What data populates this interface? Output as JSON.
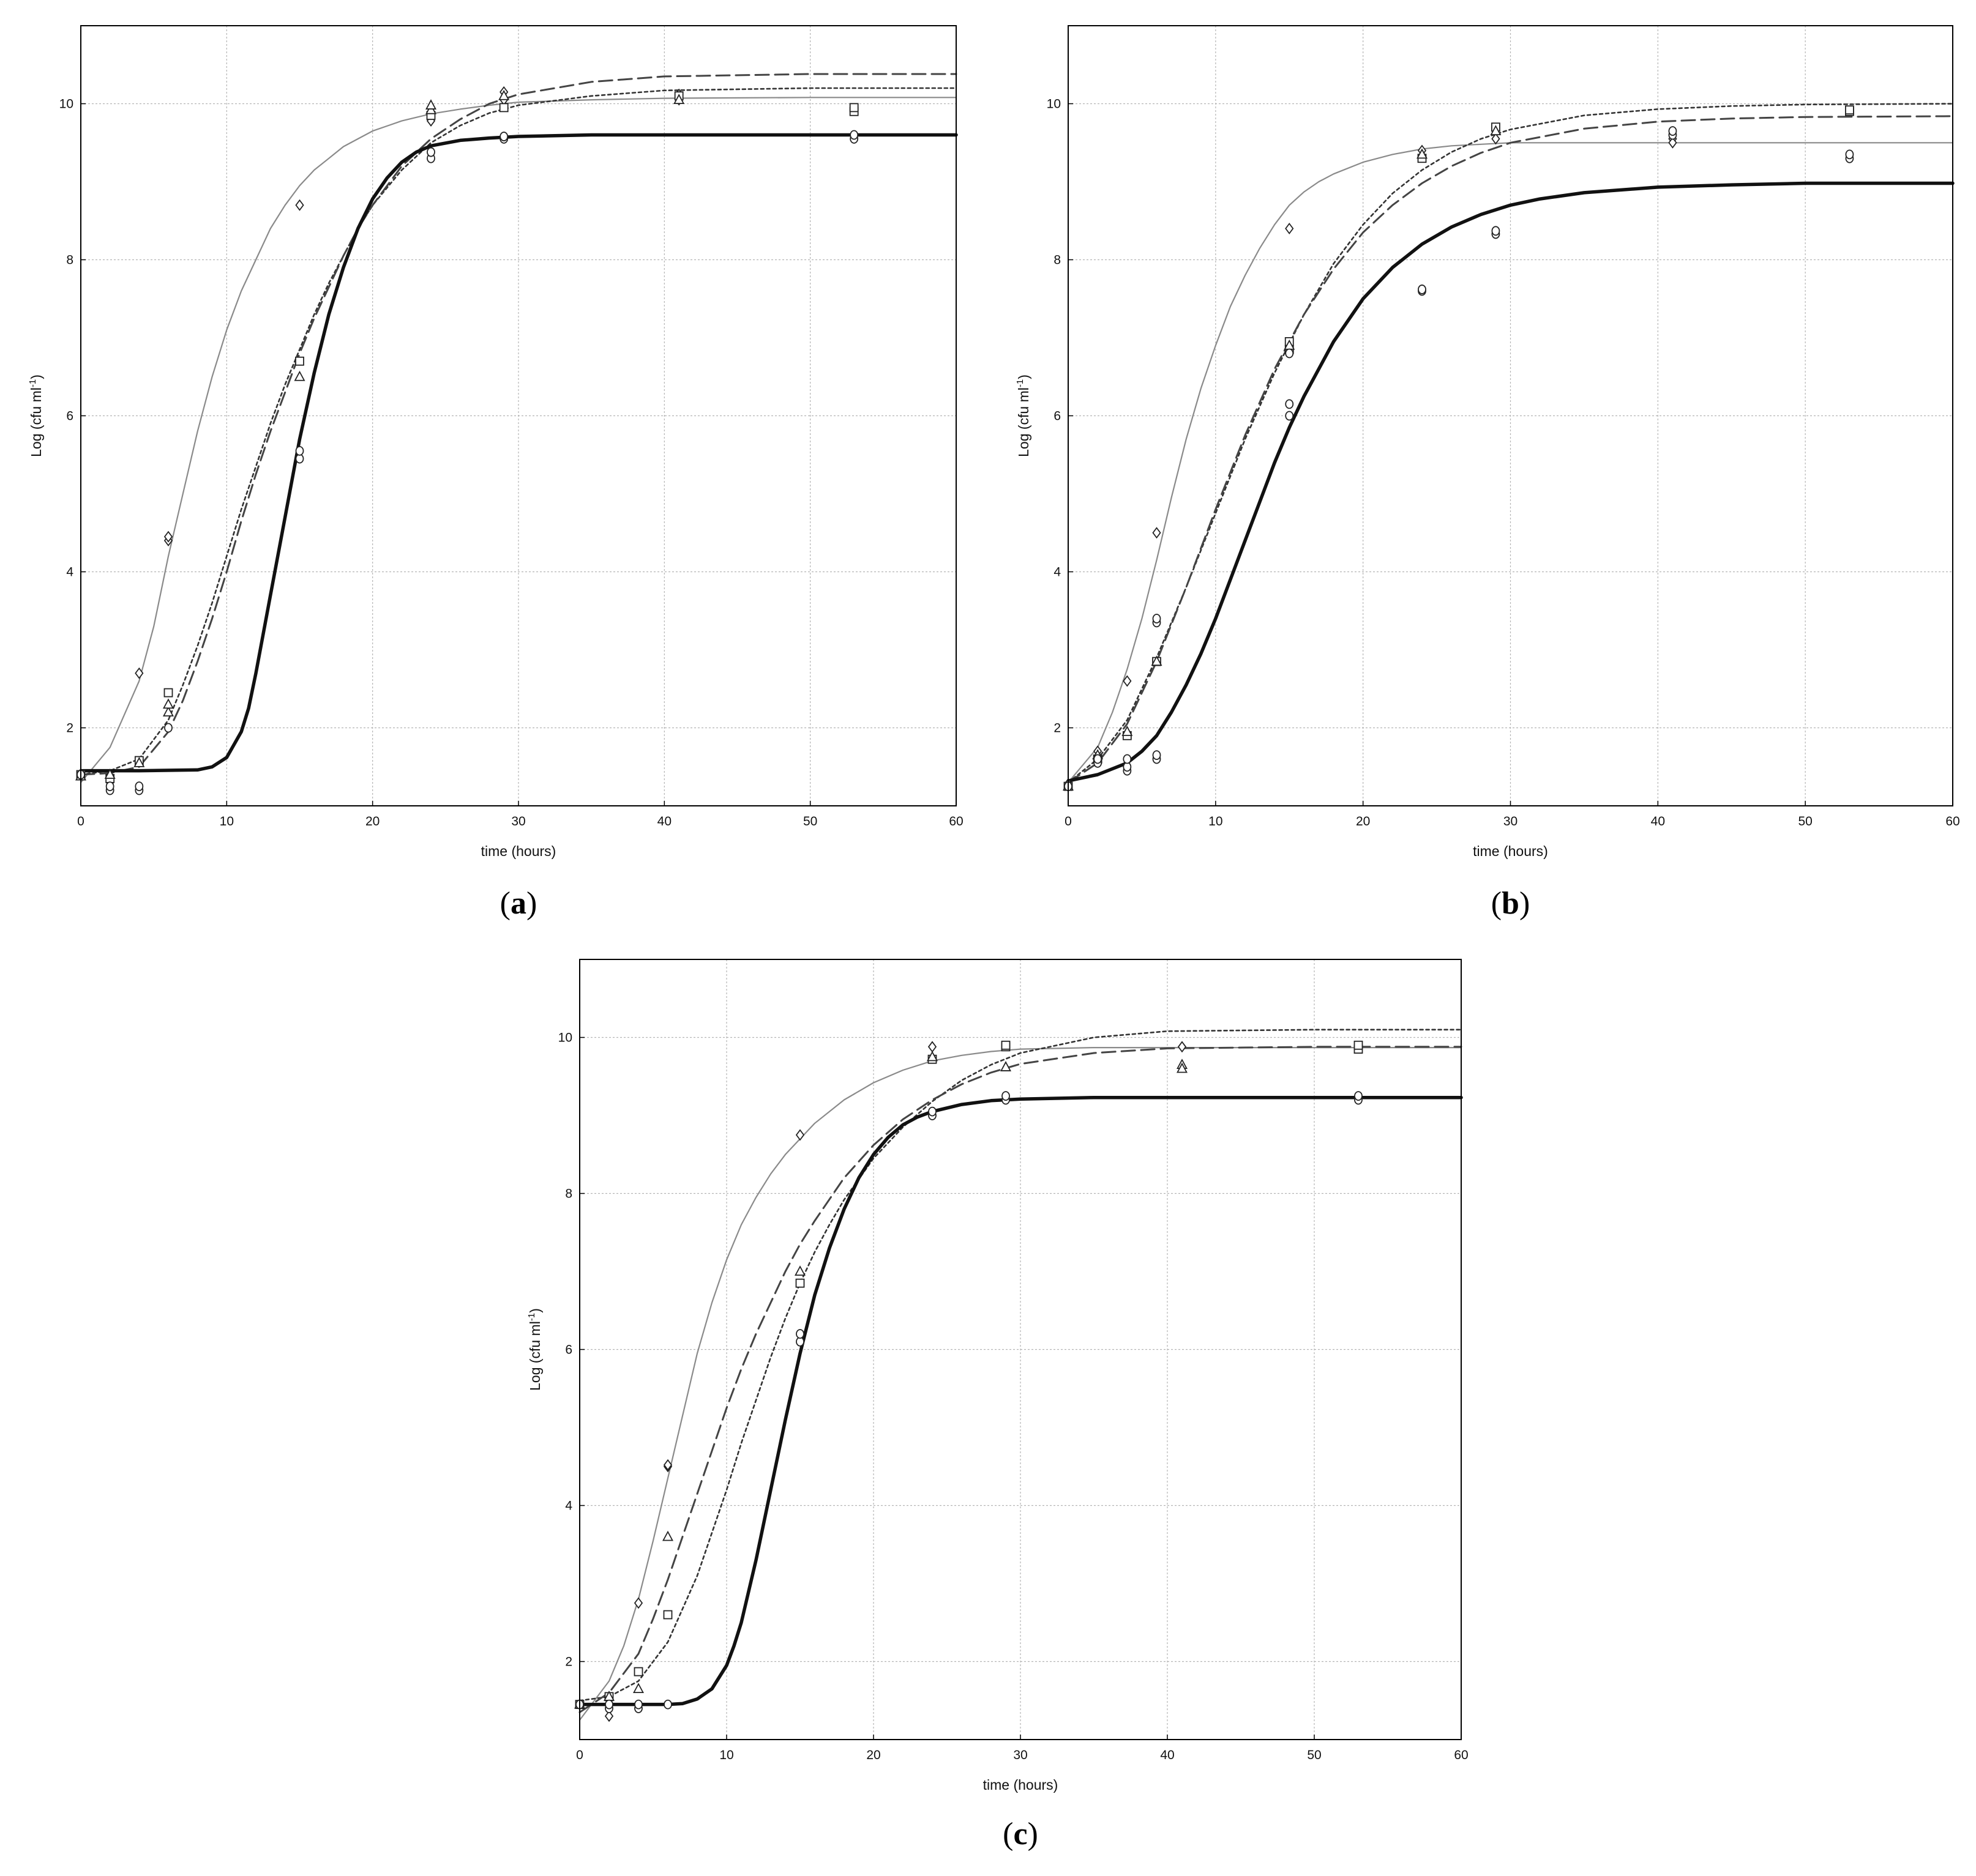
{
  "figure": {
    "background": "#ffffff"
  },
  "chart_data": [
    {
      "id": "a",
      "type": "line",
      "panel_label_open": "(",
      "panel_label": "a",
      "panel_label_close": ")",
      "xlabel": "time (hours)",
      "ylabel_main": "Log (cfu ml",
      "ylabel_sup": "-1",
      "ylabel_end": ")",
      "xlim": [
        0,
        60
      ],
      "ylim": [
        1,
        11
      ],
      "xticks": [
        0,
        10,
        20,
        30,
        40,
        50,
        60
      ],
      "yticks": [
        2,
        4,
        6,
        8,
        10
      ],
      "grid": true,
      "legend": "none",
      "curves": [
        {
          "style": "thin-solid",
          "color": "#8a8a8a",
          "x": [
            0,
            2,
            4,
            5,
            6,
            7,
            8,
            9,
            10,
            11,
            12,
            13,
            14,
            15,
            16,
            17,
            18,
            19,
            20,
            22,
            24,
            26,
            28,
            30,
            35,
            40,
            50,
            60
          ],
          "y": [
            1.3,
            1.75,
            2.6,
            3.3,
            4.2,
            5.0,
            5.8,
            6.5,
            7.1,
            7.6,
            8.0,
            8.4,
            8.7,
            8.95,
            9.15,
            9.3,
            9.45,
            9.55,
            9.65,
            9.78,
            9.87,
            9.93,
            9.98,
            10.02,
            10.05,
            10.07,
            10.08,
            10.08
          ]
        },
        {
          "style": "dotted",
          "color": "#333333",
          "x": [
            0,
            2,
            4,
            6,
            7,
            8,
            9,
            10,
            11,
            12,
            13,
            14,
            15,
            16,
            17,
            18,
            19,
            20,
            22,
            24,
            26,
            28,
            30,
            35,
            40,
            50,
            60
          ],
          "y": [
            1.4,
            1.45,
            1.6,
            2.1,
            2.55,
            3.05,
            3.6,
            4.2,
            4.8,
            5.35,
            5.9,
            6.4,
            6.85,
            7.3,
            7.7,
            8.05,
            8.4,
            8.7,
            9.15,
            9.5,
            9.72,
            9.88,
            9.98,
            10.1,
            10.17,
            10.2,
            10.2
          ]
        },
        {
          "style": "dashed",
          "color": "#444444",
          "x": [
            0,
            2,
            4,
            6,
            7,
            8,
            9,
            10,
            11,
            12,
            13,
            14,
            15,
            16,
            17,
            18,
            19,
            20,
            22,
            24,
            26,
            28,
            30,
            35,
            40,
            50,
            60
          ],
          "y": [
            1.4,
            1.42,
            1.5,
            1.95,
            2.35,
            2.85,
            3.4,
            4.0,
            4.65,
            5.25,
            5.8,
            6.3,
            6.8,
            7.25,
            7.65,
            8.05,
            8.4,
            8.7,
            9.2,
            9.55,
            9.8,
            10.0,
            10.12,
            10.28,
            10.35,
            10.38,
            10.38
          ]
        },
        {
          "style": "thick-solid",
          "color": "#111111",
          "x": [
            0,
            4,
            8,
            9,
            10,
            11,
            11.5,
            12,
            13,
            14,
            15,
            16,
            17,
            18,
            19,
            20,
            21,
            22,
            23,
            24,
            26,
            28,
            30,
            35,
            40,
            50,
            60
          ],
          "y": [
            1.45,
            1.45,
            1.46,
            1.5,
            1.62,
            1.95,
            2.25,
            2.7,
            3.7,
            4.7,
            5.7,
            6.55,
            7.3,
            7.9,
            8.4,
            8.78,
            9.05,
            9.25,
            9.38,
            9.46,
            9.53,
            9.56,
            9.58,
            9.6,
            9.6,
            9.6,
            9.6
          ]
        }
      ],
      "points": [
        {
          "marker": "diamond",
          "x": [
            0,
            2,
            4,
            6,
            6,
            15,
            24,
            24,
            29,
            29,
            41,
            41
          ],
          "y": [
            1.4,
            1.3,
            2.7,
            4.4,
            4.45,
            8.7,
            9.85,
            9.78,
            10.15,
            10.05,
            10.12,
            10.05
          ]
        },
        {
          "marker": "square",
          "x": [
            0,
            2,
            4,
            6,
            15,
            24,
            29,
            41,
            53,
            53
          ],
          "y": [
            1.4,
            1.35,
            1.58,
            2.45,
            6.7,
            9.85,
            9.95,
            10.1,
            9.9,
            9.95
          ]
        },
        {
          "marker": "triangle",
          "x": [
            0,
            2,
            4,
            6,
            6,
            15,
            24,
            24,
            29,
            41
          ],
          "y": [
            1.38,
            1.4,
            1.55,
            2.2,
            2.3,
            6.5,
            9.92,
            9.98,
            10.1,
            10.05
          ]
        },
        {
          "marker": "circle",
          "x": [
            0,
            2,
            2,
            4,
            4,
            6,
            15,
            15,
            24,
            24,
            29,
            29,
            53,
            53
          ],
          "y": [
            1.4,
            1.2,
            1.25,
            1.2,
            1.25,
            2.0,
            5.45,
            5.55,
            9.3,
            9.38,
            9.55,
            9.58,
            9.55,
            9.6
          ]
        }
      ]
    },
    {
      "id": "b",
      "type": "line",
      "panel_label_open": "(",
      "panel_label": "b",
      "panel_label_close": ")",
      "xlabel": "time (hours)",
      "ylabel_main": "Log (cfu ml",
      "ylabel_sup": "-1",
      "ylabel_end": ")",
      "xlim": [
        0,
        60
      ],
      "ylim": [
        1,
        11
      ],
      "xticks": [
        0,
        10,
        20,
        30,
        40,
        50,
        60
      ],
      "yticks": [
        2,
        4,
        6,
        8,
        10
      ],
      "grid": true,
      "legend": "none",
      "curves": [
        {
          "style": "thin-solid",
          "color": "#8a8a8a",
          "x": [
            0,
            2,
            3,
            4,
            5,
            6,
            7,
            8,
            9,
            10,
            11,
            12,
            13,
            14,
            15,
            16,
            17,
            18,
            20,
            22,
            24,
            26,
            28,
            30,
            35,
            40,
            50,
            60
          ],
          "y": [
            1.3,
            1.75,
            2.2,
            2.75,
            3.4,
            4.15,
            4.95,
            5.7,
            6.35,
            6.9,
            7.4,
            7.8,
            8.15,
            8.45,
            8.7,
            8.87,
            9.0,
            9.1,
            9.25,
            9.35,
            9.42,
            9.46,
            9.48,
            9.5,
            9.5,
            9.5,
            9.5,
            9.5
          ]
        },
        {
          "style": "dotted",
          "color": "#333333",
          "x": [
            0,
            2,
            4,
            6,
            8,
            10,
            12,
            14,
            16,
            18,
            20,
            22,
            24,
            26,
            28,
            30,
            35,
            40,
            45,
            50,
            60
          ],
          "y": [
            1.3,
            1.6,
            2.1,
            2.9,
            3.8,
            4.75,
            5.7,
            6.55,
            7.3,
            7.95,
            8.45,
            8.85,
            9.15,
            9.38,
            9.55,
            9.67,
            9.85,
            9.93,
            9.97,
            9.99,
            10.0
          ]
        },
        {
          "style": "dashed",
          "color": "#444444",
          "x": [
            0,
            2,
            4,
            6,
            8,
            10,
            12,
            14,
            16,
            18,
            20,
            22,
            24,
            26,
            28,
            30,
            35,
            40,
            45,
            50,
            60
          ],
          "y": [
            1.3,
            1.55,
            2.05,
            2.85,
            3.8,
            4.8,
            5.75,
            6.6,
            7.3,
            7.88,
            8.35,
            8.7,
            8.98,
            9.2,
            9.37,
            9.5,
            9.68,
            9.77,
            9.81,
            9.83,
            9.84
          ]
        },
        {
          "style": "thick-solid",
          "color": "#111111",
          "x": [
            0,
            2,
            4,
            5,
            6,
            7,
            8,
            9,
            10,
            11,
            12,
            13,
            14,
            15,
            16,
            18,
            20,
            22,
            24,
            26,
            28,
            30,
            32,
            35,
            40,
            45,
            50,
            60
          ],
          "y": [
            1.32,
            1.4,
            1.55,
            1.7,
            1.9,
            2.2,
            2.55,
            2.95,
            3.4,
            3.9,
            4.4,
            4.9,
            5.4,
            5.85,
            6.25,
            6.95,
            7.5,
            7.9,
            8.2,
            8.42,
            8.58,
            8.7,
            8.78,
            8.86,
            8.93,
            8.96,
            8.98,
            8.98
          ]
        }
      ],
      "points": [
        {
          "marker": "diamond",
          "x": [
            0,
            2,
            4,
            6,
            15,
            24,
            29,
            41,
            41
          ],
          "y": [
            1.28,
            1.7,
            2.6,
            4.5,
            8.4,
            9.4,
            9.55,
            9.55,
            9.5
          ]
        },
        {
          "marker": "square",
          "x": [
            0,
            2,
            4,
            6,
            15,
            15,
            24,
            29,
            53,
            53
          ],
          "y": [
            1.25,
            1.6,
            1.9,
            2.85,
            6.95,
            6.85,
            9.3,
            9.7,
            9.9,
            9.92
          ]
        },
        {
          "marker": "triangle",
          "x": [
            0,
            2,
            4,
            6,
            15,
            24,
            29
          ],
          "y": [
            1.25,
            1.65,
            1.95,
            2.85,
            6.9,
            9.35,
            9.65
          ]
        },
        {
          "marker": "circle",
          "x": [
            0,
            2,
            2,
            4,
            4,
            4,
            6,
            6,
            6,
            6,
            15,
            15,
            15,
            24,
            24,
            29,
            29,
            41,
            41,
            53,
            53
          ],
          "y": [
            1.25,
            1.55,
            1.6,
            1.45,
            1.5,
            1.6,
            1.6,
            1.65,
            3.35,
            3.4,
            6.0,
            6.15,
            6.8,
            7.6,
            7.62,
            8.33,
            8.37,
            9.6,
            9.65,
            9.3,
            9.35
          ]
        }
      ]
    },
    {
      "id": "c",
      "type": "line",
      "panel_label_open": "(",
      "panel_label": "c",
      "panel_label_close": ")",
      "xlabel": "time (hours)",
      "ylabel_main": "Log (cfu ml",
      "ylabel_sup": "-1",
      "ylabel_end": ")",
      "xlim": [
        0,
        60
      ],
      "ylim": [
        1,
        11
      ],
      "xticks": [
        0,
        10,
        20,
        30,
        40,
        50,
        60
      ],
      "yticks": [
        2,
        4,
        6,
        8,
        10
      ],
      "grid": true,
      "legend": "none",
      "curves": [
        {
          "style": "thin-solid",
          "color": "#8a8a8a",
          "x": [
            0,
            2,
            3,
            4,
            5,
            6,
            7,
            8,
            9,
            10,
            11,
            12,
            13,
            14,
            15,
            16,
            18,
            20,
            22,
            24,
            26,
            28,
            30,
            35,
            40,
            50,
            60
          ],
          "y": [
            1.25,
            1.75,
            2.2,
            2.8,
            3.55,
            4.35,
            5.15,
            5.95,
            6.6,
            7.15,
            7.6,
            7.95,
            8.25,
            8.5,
            8.7,
            8.9,
            9.2,
            9.42,
            9.58,
            9.7,
            9.77,
            9.82,
            9.85,
            9.87,
            9.87,
            9.87,
            9.87
          ]
        },
        {
          "style": "dotted",
          "color": "#333333",
          "x": [
            0,
            2,
            4,
            6,
            8,
            9,
            10,
            11,
            12,
            13,
            14,
            15,
            16,
            17,
            18,
            20,
            22,
            24,
            26,
            28,
            30,
            35,
            40,
            50,
            60
          ],
          "y": [
            1.5,
            1.55,
            1.75,
            2.25,
            3.1,
            3.65,
            4.2,
            4.8,
            5.35,
            5.9,
            6.4,
            6.85,
            7.25,
            7.6,
            7.92,
            8.45,
            8.85,
            9.18,
            9.45,
            9.65,
            9.8,
            10.0,
            10.08,
            10.1,
            10.1
          ]
        },
        {
          "style": "dashed",
          "color": "#444444",
          "x": [
            0,
            2,
            4,
            5,
            6,
            7,
            8,
            9,
            10,
            11,
            12,
            13,
            14,
            15,
            16,
            18,
            20,
            22,
            24,
            26,
            28,
            30,
            35,
            40,
            50,
            60
          ],
          "y": [
            1.35,
            1.6,
            2.1,
            2.55,
            3.05,
            3.6,
            4.15,
            4.7,
            5.25,
            5.75,
            6.2,
            6.6,
            7.0,
            7.35,
            7.65,
            8.2,
            8.62,
            8.95,
            9.2,
            9.4,
            9.55,
            9.66,
            9.8,
            9.86,
            9.88,
            9.88
          ]
        },
        {
          "style": "thick-solid",
          "color": "#111111",
          "x": [
            0,
            4,
            6,
            7,
            8,
            9,
            10,
            10.5,
            11,
            12,
            13,
            14,
            15,
            16,
            17,
            18,
            19,
            20,
            21,
            22,
            23,
            24,
            26,
            28,
            30,
            35,
            40,
            50,
            60
          ],
          "y": [
            1.45,
            1.45,
            1.45,
            1.46,
            1.52,
            1.65,
            1.95,
            2.2,
            2.5,
            3.3,
            4.2,
            5.1,
            5.95,
            6.7,
            7.3,
            7.8,
            8.2,
            8.5,
            8.72,
            8.88,
            8.98,
            9.05,
            9.14,
            9.19,
            9.21,
            9.23,
            9.23,
            9.23,
            9.23
          ]
        }
      ],
      "points": [
        {
          "marker": "diamond",
          "x": [
            0,
            2,
            4,
            6,
            6,
            15,
            24,
            41
          ],
          "y": [
            1.45,
            1.3,
            2.75,
            4.5,
            4.52,
            8.75,
            9.88,
            9.88
          ]
        },
        {
          "marker": "square",
          "x": [
            0,
            2,
            4,
            6,
            15,
            24,
            29,
            29,
            53,
            53
          ],
          "y": [
            1.45,
            1.55,
            1.87,
            2.6,
            6.85,
            9.72,
            9.88,
            9.9,
            9.85,
            9.9
          ]
        },
        {
          "marker": "triangle",
          "x": [
            0,
            2,
            4,
            6,
            15,
            24,
            29,
            41,
            41
          ],
          "y": [
            1.45,
            1.55,
            1.65,
            3.6,
            7.0,
            9.75,
            9.62,
            9.65,
            9.6
          ]
        },
        {
          "marker": "circle",
          "x": [
            0,
            2,
            2,
            4,
            4,
            6,
            15,
            15,
            24,
            24,
            29,
            29,
            53,
            53
          ],
          "y": [
            1.45,
            1.4,
            1.45,
            1.4,
            1.45,
            1.45,
            6.1,
            6.2,
            9.0,
            9.05,
            9.2,
            9.25,
            9.2,
            9.25
          ]
        }
      ]
    }
  ]
}
